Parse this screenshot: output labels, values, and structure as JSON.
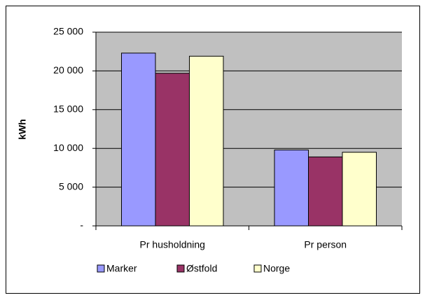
{
  "chart_data": {
    "type": "bar",
    "y_label": "kWh",
    "categories": [
      "Pr husholdning",
      "Pr person"
    ],
    "series": [
      {
        "name": "Marker",
        "color": "#9999ff",
        "values": [
          22300,
          9800
        ]
      },
      {
        "name": "Østfold",
        "color": "#993366",
        "values": [
          19700,
          8900
        ]
      },
      {
        "name": "Norge",
        "color": "#ffffcc",
        "values": [
          21900,
          9500
        ]
      }
    ],
    "ylim": [
      0,
      25000
    ],
    "yticks": [
      {
        "value": 0,
        "label": "-"
      },
      {
        "value": 5000,
        "label": "5 000"
      },
      {
        "value": 10000,
        "label": "10 000"
      },
      {
        "value": 15000,
        "label": "15 000"
      },
      {
        "value": 20000,
        "label": "20 000"
      },
      {
        "value": 25000,
        "label": "25 000"
      }
    ],
    "grid": true,
    "legend": "bottom",
    "plot_background": "#c0c0c0"
  }
}
